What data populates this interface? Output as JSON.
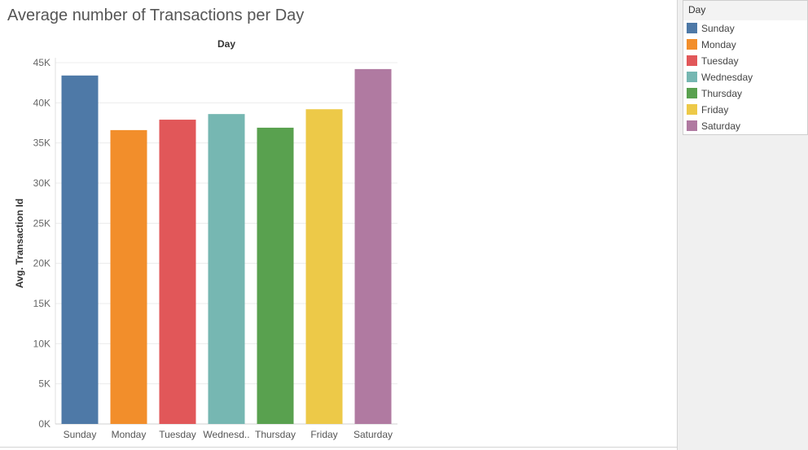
{
  "title": "Average number of Transactions per Day",
  "legend": {
    "title": "Day",
    "items": [
      {
        "label": "Sunday",
        "color": "#4e79a7"
      },
      {
        "label": "Monday",
        "color": "#f28e2b"
      },
      {
        "label": "Tuesday",
        "color": "#e15759"
      },
      {
        "label": "Wednesday",
        "color": "#76b7b2"
      },
      {
        "label": "Thursday",
        "color": "#59a14f"
      },
      {
        "label": "Friday",
        "color": "#edc948"
      },
      {
        "label": "Saturday",
        "color": "#b07aa1"
      }
    ]
  },
  "chart_data": {
    "type": "bar",
    "title": "Average number of Transactions per Day",
    "column_header": "Day",
    "ylabel": "Avg. Transaction Id",
    "xlabel": "",
    "ylim": [
      0,
      45000
    ],
    "grid": true,
    "legend_position": "right",
    "categories": [
      "Sunday",
      "Monday",
      "Tuesday",
      "Wednesday",
      "Thursday",
      "Friday",
      "Saturday"
    ],
    "category_labels": [
      "Sunday",
      "Monday",
      "Tuesday",
      "Wednesd..",
      "Thursday",
      "Friday",
      "Saturday"
    ],
    "values": [
      43400,
      36600,
      37900,
      38600,
      36900,
      39200,
      44200
    ],
    "colors": [
      "#4e79a7",
      "#f28e2b",
      "#e15759",
      "#76b7b2",
      "#59a14f",
      "#edc948",
      "#b07aa1"
    ],
    "y_ticks": [
      0,
      5000,
      10000,
      15000,
      20000,
      25000,
      30000,
      35000,
      40000,
      45000
    ],
    "y_tick_labels": [
      "0K",
      "5K",
      "10K",
      "15K",
      "20K",
      "25K",
      "30K",
      "35K",
      "40K",
      "45K"
    ]
  }
}
